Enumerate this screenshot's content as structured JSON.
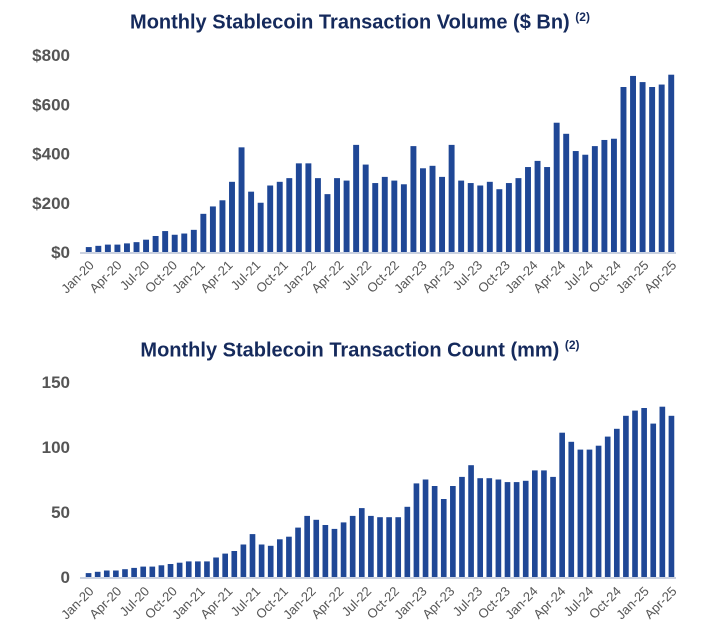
{
  "colors": {
    "bar": "#1f4796",
    "title": "#152a5c",
    "tick": "#555555"
  },
  "chart_data": [
    {
      "type": "bar",
      "title": "Monthly Stablecoin Transaction Volume ($ Bn)",
      "title_note": "(2)",
      "y_tick_labels": [
        "$0",
        "$200",
        "$400",
        "$600",
        "$800"
      ],
      "x_tick_labels": [
        "Jan-20",
        "Apr-20",
        "Jul-20",
        "Oct-20",
        "Jan-21",
        "Apr-21",
        "Jul-21",
        "Oct-21",
        "Jan-22",
        "Apr-22",
        "Jul-22",
        "Oct-22",
        "Jan-23",
        "Apr-23",
        "Jul-23",
        "Oct-23",
        "Jan-24",
        "Apr-24",
        "Jul-24",
        "Oct-24",
        "Jan-25",
        "Apr-25"
      ],
      "ylim": [
        0,
        800
      ],
      "grid": false,
      "values": [
        20,
        25,
        30,
        30,
        35,
        40,
        50,
        65,
        85,
        70,
        75,
        90,
        155,
        185,
        210,
        285,
        425,
        245,
        200,
        270,
        285,
        300,
        360,
        360,
        300,
        235,
        300,
        290,
        435,
        355,
        280,
        305,
        290,
        275,
        430,
        340,
        350,
        305,
        435,
        290,
        280,
        270,
        285,
        255,
        280,
        300,
        345,
        370,
        345,
        525,
        480,
        410,
        395,
        430,
        455,
        460,
        670,
        715,
        690,
        670,
        680,
        720
      ]
    },
    {
      "type": "bar",
      "title": "Monthly Stablecoin Transaction Count (mm)",
      "title_note": "(2)",
      "y_tick_labels": [
        "0",
        "50",
        "100",
        "150"
      ],
      "x_tick_labels": [
        "Jan-20",
        "Apr-20",
        "Jul-20",
        "Oct-20",
        "Jan-21",
        "Apr-21",
        "Jul-21",
        "Oct-21",
        "Jan-22",
        "Apr-22",
        "Jul-22",
        "Oct-22",
        "Jan-23",
        "Apr-23",
        "Jul-23",
        "Oct-23",
        "Jan-24",
        "Apr-24",
        "Jul-24",
        "Oct-24",
        "Jan-25",
        "Apr-25"
      ],
      "ylim": [
        0,
        150
      ],
      "grid": false,
      "values": [
        3,
        4,
        5,
        5,
        6,
        7,
        8,
        8,
        9,
        10,
        11,
        12,
        12,
        12,
        15,
        18,
        20,
        25,
        33,
        25,
        24,
        29,
        31,
        38,
        47,
        44,
        40,
        37,
        42,
        47,
        53,
        47,
        46,
        46,
        46,
        54,
        72,
        75,
        70,
        60,
        70,
        77,
        86,
        76,
        76,
        75,
        73,
        73,
        74,
        82,
        82,
        77,
        111,
        104,
        98,
        98,
        101,
        108,
        114,
        124,
        128,
        130,
        118,
        131,
        124
      ]
    }
  ]
}
